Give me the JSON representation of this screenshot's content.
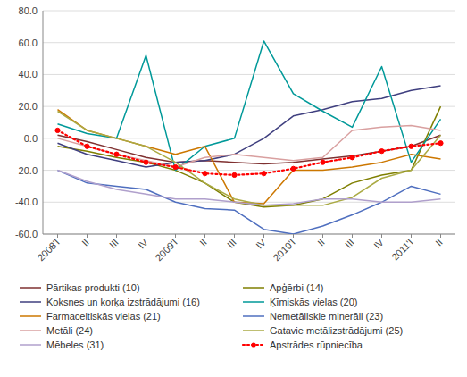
{
  "chart_data": {
    "type": "line",
    "categories": [
      "2008'I",
      "II",
      "III",
      "IV",
      "2009'I",
      "II",
      "III",
      "IV",
      "2010'I",
      "II",
      "III",
      "IV",
      "2011'I",
      "II"
    ],
    "series": [
      {
        "name": "Pārtikas produkti (10)",
        "color": "#7F3030",
        "line_style": "solid",
        "values": [
          2,
          -2,
          -7,
          -12,
          -15,
          -14,
          -15,
          -16,
          -15,
          -13,
          -11,
          -8,
          -5,
          2
        ]
      },
      {
        "name": "Apģērbi (14)",
        "color": "#7F7F00",
        "line_style": "solid",
        "values": [
          -5,
          -8,
          -12,
          -15,
          -20,
          -28,
          -40,
          -43,
          -42,
          -38,
          -28,
          -23,
          -20,
          20
        ]
      },
      {
        "name": "Koksnes un korķa izstrādājumi (16)",
        "color": "#3F3F7F",
        "line_style": "solid",
        "values": [
          -3,
          -10,
          -14,
          -18,
          -15,
          -14,
          -10,
          0,
          14,
          18,
          23,
          25,
          30,
          33
        ]
      },
      {
        "name": "Ķīmiskās vielas (20)",
        "color": "#009999",
        "line_style": "solid",
        "values": [
          9,
          3,
          0,
          52,
          -20,
          -5,
          0,
          61,
          28,
          17,
          7,
          45,
          -15,
          12
        ]
      },
      {
        "name": "Farmaceitiskās vielas (21)",
        "color": "#CC7700",
        "line_style": "solid",
        "values": [
          18,
          5,
          0,
          -5,
          -10,
          -5,
          -40,
          -41,
          -20,
          -20,
          -18,
          -15,
          -10,
          -13
        ]
      },
      {
        "name": "Nemetāliskie minerāli (23)",
        "color": "#4F6FBF",
        "line_style": "solid",
        "values": [
          -20,
          -28,
          -30,
          -32,
          -40,
          -44,
          -45,
          -57,
          -60,
          -55,
          -48,
          -40,
          -30,
          -35
        ]
      },
      {
        "name": "Metāli (24)",
        "color": "#D9A0A0",
        "line_style": "solid",
        "values": [
          0,
          -5,
          -10,
          -14,
          -18,
          -12,
          -10,
          -12,
          -14,
          -12,
          5,
          7,
          8,
          5
        ]
      },
      {
        "name": "Gatavie metālizstrādājumi (25)",
        "color": "#AAAA44",
        "line_style": "solid",
        "values": [
          17,
          5,
          0,
          -5,
          -15,
          -28,
          -38,
          -42,
          -42,
          -42,
          -37,
          -25,
          -20,
          2
        ]
      },
      {
        "name": "Mēbeles (31)",
        "color": "#B0A0CC",
        "line_style": "solid",
        "values": [
          -20,
          -27,
          -32,
          -35,
          -38,
          -38,
          -40,
          -42,
          -41,
          -38,
          -38,
          -40,
          -40,
          -38
        ]
      },
      {
        "name": "Apstrādes rūpniecība",
        "color": "#FF0000",
        "line_style": "dotted",
        "marker": "o",
        "values": [
          5,
          -5,
          -10,
          -15,
          -18,
          -22,
          -23,
          -22,
          -19,
          -15,
          -12,
          -8,
          -5,
          -3
        ]
      }
    ],
    "ylim": [
      -60,
      80
    ],
    "yticks": [
      {
        "value": -60,
        "label": "-60.0"
      },
      {
        "value": -40,
        "label": "-40.0"
      },
      {
        "value": -20,
        "label": "-20.0"
      },
      {
        "value": 0,
        "label": "0.0"
      },
      {
        "value": 20,
        "label": "20.0"
      },
      {
        "value": 40,
        "label": "40.0"
      },
      {
        "value": 60,
        "label": "60.0"
      },
      {
        "value": 80,
        "label": "80.0"
      }
    ],
    "grid": true,
    "legend": "bottom"
  }
}
